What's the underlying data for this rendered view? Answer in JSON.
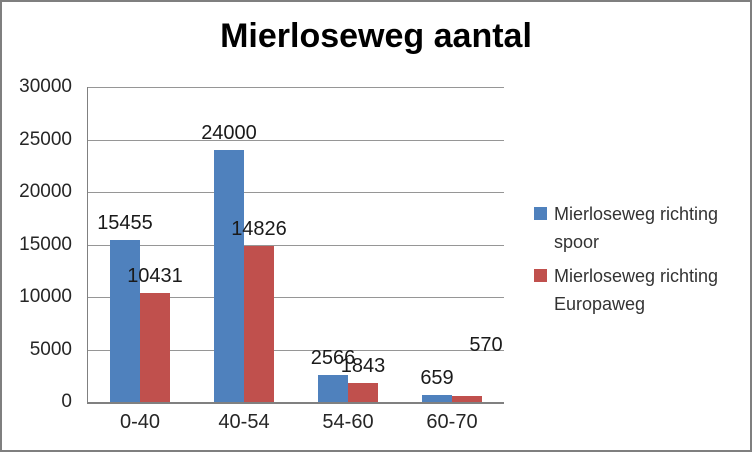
{
  "title": "Mierloseweg aantal",
  "chart_data": {
    "type": "bar",
    "title": "Mierloseweg aantal",
    "categories": [
      "0-40",
      "40-54",
      "54-60",
      "60-70"
    ],
    "series": [
      {
        "name": "Mierloseweg richting spoor",
        "color": "#4F81BD",
        "values": [
          15455,
          24000,
          2566,
          659
        ]
      },
      {
        "name": "Mierloseweg richting Europaweg",
        "color": "#C0504D",
        "values": [
          10431,
          14826,
          1843,
          570
        ]
      }
    ],
    "ylim": [
      0,
      30000
    ],
    "ytick_step": 5000,
    "ytick_labels": [
      "0",
      "5000",
      "10000",
      "15000",
      "20000",
      "25000",
      "30000"
    ],
    "grid": true,
    "gridline_color": "#969696",
    "axis_color": "#808080",
    "text_color": "#262626",
    "legend_position": "right",
    "data_labels": true,
    "label_offsets": [
      [
        [
          0,
          0
        ],
        [
          0,
          0
        ],
        [
          0,
          0
        ],
        [
          0,
          0
        ]
      ],
      [
        [
          0,
          0
        ],
        [
          0,
          0
        ],
        [
          0,
          0
        ],
        [
          19,
          -34
        ]
      ]
    ]
  }
}
